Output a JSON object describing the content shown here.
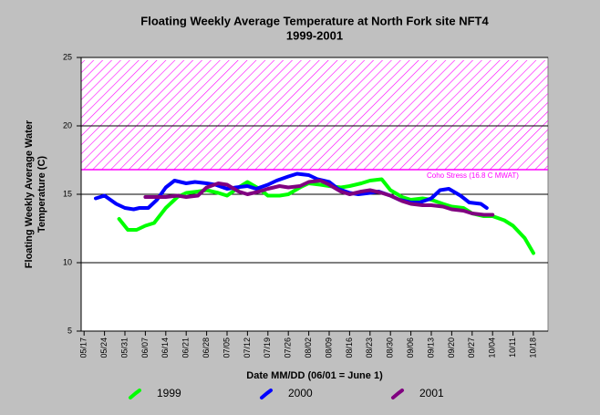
{
  "chart_data": {
    "type": "line",
    "title": [
      "Floating Weekly Average Temperature at North Fork site NFT4",
      "1999-2001"
    ],
    "x_label": "Date MM/DD (06/01 = June 1)",
    "y_label": [
      "Floating Weekly Average Water",
      "Temperature (C)"
    ],
    "xlim": [
      "05/16",
      "10/23"
    ],
    "xticks": [
      "05/17",
      "05/24",
      "05/31",
      "06/07",
      "06/14",
      "06/21",
      "06/28",
      "07/05",
      "07/12",
      "07/19",
      "07/26",
      "08/02",
      "08/09",
      "08/16",
      "08/23",
      "08/30",
      "09/06",
      "09/13",
      "09/20",
      "09/27",
      "10/04",
      "10/11",
      "10/18"
    ],
    "ylim": [
      5,
      25
    ],
    "yticks": [
      5,
      10,
      15,
      20,
      25
    ],
    "grid": true,
    "band": {
      "from": 16.8,
      "label": "Coho Stress (16.8 C MWAT)",
      "color": "#ff00ff"
    },
    "legend": "bottom",
    "series": [
      {
        "name": "1999",
        "color": "#00ff00",
        "x": [
          "05/29",
          "06/01",
          "06/04",
          "06/07",
          "06/10",
          "06/14",
          "06/18",
          "06/21",
          "06/25",
          "06/28",
          "07/02",
          "07/05",
          "07/09",
          "07/12",
          "07/16",
          "07/19",
          "07/23",
          "07/26",
          "07/30",
          "08/02",
          "08/06",
          "08/09",
          "08/13",
          "08/16",
          "08/20",
          "08/23",
          "08/27",
          "08/30",
          "09/03",
          "09/06",
          "09/10",
          "09/13",
          "09/17",
          "09/20",
          "09/24",
          "09/27",
          "10/01",
          "10/04",
          "10/08",
          "10/11",
          "10/15",
          "10/18"
        ],
        "values": [
          13.2,
          12.4,
          12.4,
          12.7,
          12.9,
          14.0,
          14.8,
          15.1,
          15.2,
          15.3,
          15.1,
          14.9,
          15.5,
          15.9,
          15.4,
          14.9,
          14.9,
          15.0,
          15.5,
          15.8,
          15.7,
          15.6,
          15.5,
          15.6,
          15.8,
          16.0,
          16.1,
          15.3,
          14.8,
          14.6,
          14.7,
          14.6,
          14.3,
          14.1,
          14.0,
          13.6,
          13.4,
          13.4,
          13.1,
          12.7,
          11.8,
          10.7
        ]
      },
      {
        "name": "2000",
        "color": "#0000ff",
        "x": [
          "05/21",
          "05/24",
          "05/28",
          "05/31",
          "06/03",
          "06/05",
          "06/08",
          "06/11",
          "06/14",
          "06/17",
          "06/21",
          "06/24",
          "06/28",
          "07/01",
          "07/05",
          "07/08",
          "07/12",
          "07/15",
          "07/19",
          "07/22",
          "07/26",
          "07/29",
          "08/02",
          "08/05",
          "08/09",
          "08/12",
          "08/16",
          "08/19",
          "08/23",
          "08/26",
          "08/30",
          "09/02",
          "09/06",
          "09/09",
          "09/13",
          "09/16",
          "09/19",
          "09/23",
          "09/26",
          "09/30",
          "10/02"
        ],
        "values": [
          14.7,
          14.9,
          14.3,
          14.0,
          13.9,
          14.0,
          14.0,
          14.6,
          15.5,
          16.0,
          15.8,
          15.9,
          15.8,
          15.7,
          15.4,
          15.5,
          15.6,
          15.4,
          15.7,
          16.0,
          16.3,
          16.5,
          16.4,
          16.1,
          15.9,
          15.4,
          15.1,
          15.0,
          15.1,
          15.2,
          14.9,
          14.6,
          14.4,
          14.4,
          14.7,
          15.3,
          15.4,
          14.9,
          14.4,
          14.3,
          14.0
        ]
      },
      {
        "name": "2001",
        "color": "#800080",
        "x": [
          "06/07",
          "06/10",
          "06/14",
          "06/18",
          "06/21",
          "06/25",
          "06/28",
          "07/02",
          "07/05",
          "07/09",
          "07/12",
          "07/16",
          "07/19",
          "07/23",
          "07/26",
          "07/30",
          "08/02",
          "08/06",
          "08/09",
          "08/13",
          "08/16",
          "08/20",
          "08/23",
          "08/27",
          "08/30",
          "09/03",
          "09/06",
          "09/10",
          "09/13",
          "09/17",
          "09/20",
          "09/24",
          "09/27",
          "10/01",
          "10/04"
        ],
        "values": [
          14.8,
          14.8,
          14.8,
          14.9,
          14.8,
          14.9,
          15.5,
          15.8,
          15.7,
          15.2,
          15.0,
          15.2,
          15.4,
          15.6,
          15.5,
          15.6,
          15.9,
          16.0,
          15.7,
          15.2,
          15.0,
          15.2,
          15.3,
          15.1,
          14.9,
          14.5,
          14.3,
          14.2,
          14.2,
          14.1,
          13.9,
          13.8,
          13.6,
          13.5,
          13.5
        ]
      }
    ]
  }
}
